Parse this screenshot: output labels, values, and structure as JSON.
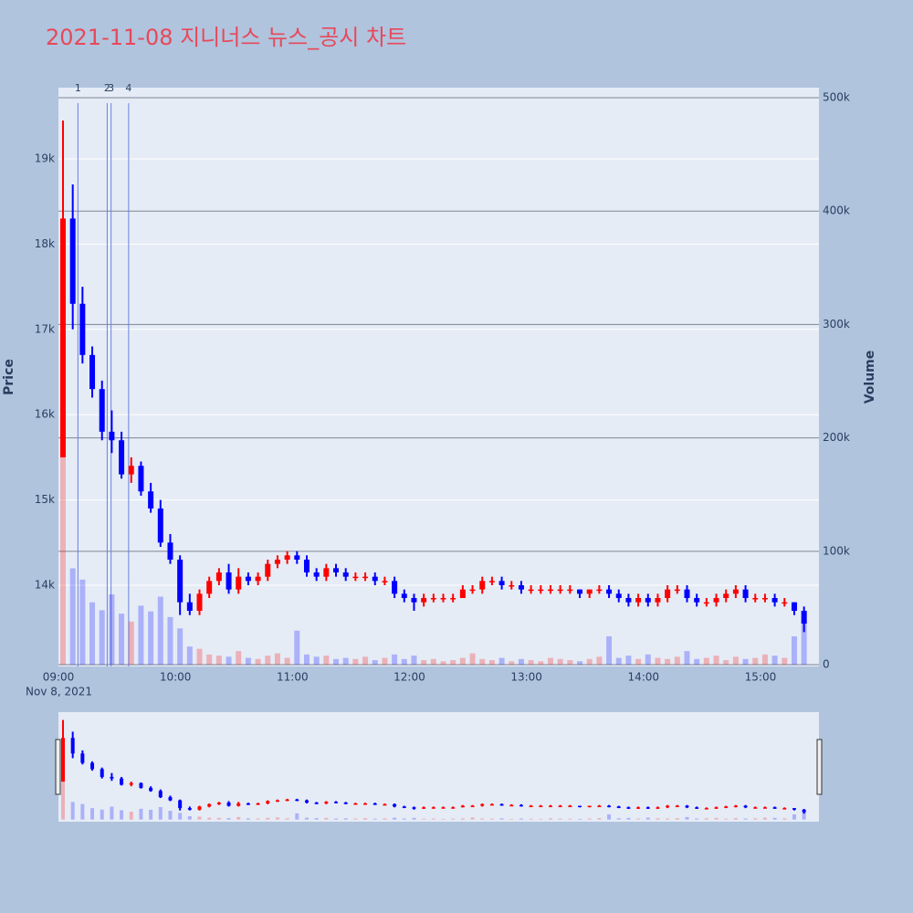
{
  "chart_data": {
    "type": "candlestick",
    "title": "2021-11-08 지니너스 뉴스_공시 차트",
    "y_label": "Price",
    "y2_label": "Volume",
    "x_date_label": "Nov 8, 2021",
    "up_color": "#ff0000",
    "down_color": "#0000ff",
    "xlim": [
      "09:00",
      "15:30"
    ],
    "xticks": [
      "09:00",
      "10:00",
      "11:00",
      "12:00",
      "13:00",
      "14:00",
      "15:00"
    ],
    "ylim": [
      13047,
      19835
    ],
    "yticks": [
      {
        "value": 14000,
        "label": "14k"
      },
      {
        "value": 15000,
        "label": "15k"
      },
      {
        "value": 16000,
        "label": "16k"
      },
      {
        "value": 17000,
        "label": "17k"
      },
      {
        "value": 18000,
        "label": "18k"
      },
      {
        "value": 19000,
        "label": "19k"
      }
    ],
    "y2lim": [
      -1600,
      508900
    ],
    "y2ticks": [
      0,
      {
        "value": 100000,
        "label": "100k"
      },
      {
        "value": 200000,
        "label": "200k"
      },
      {
        "value": 300000,
        "label": "300k"
      },
      {
        "value": 400000,
        "label": "400k"
      },
      {
        "value": 500000,
        "label": "500k"
      }
    ],
    "annotations": [
      {
        "x": "09:10",
        "label": "1"
      },
      {
        "x": "09:25",
        "label": "2"
      },
      {
        "x": "09:27",
        "label": "3"
      },
      {
        "x": "09:36",
        "label": "4"
      }
    ],
    "x": [
      "09:00",
      "09:05",
      "09:10",
      "09:15",
      "09:20",
      "09:25",
      "09:30",
      "09:35",
      "09:40",
      "09:45",
      "09:50",
      "09:55",
      "10:00",
      "10:05",
      "10:10",
      "10:15",
      "10:20",
      "10:25",
      "10:30",
      "10:35",
      "10:40",
      "10:45",
      "10:50",
      "10:55",
      "11:00",
      "11:05",
      "11:10",
      "11:15",
      "11:20",
      "11:25",
      "11:30",
      "11:35",
      "11:40",
      "11:45",
      "11:50",
      "11:55",
      "12:00",
      "12:05",
      "12:10",
      "12:15",
      "12:20",
      "12:25",
      "12:30",
      "12:35",
      "12:40",
      "12:45",
      "12:50",
      "12:55",
      "13:00",
      "13:05",
      "13:10",
      "13:15",
      "13:20",
      "13:25",
      "13:30",
      "13:35",
      "13:40",
      "13:45",
      "13:50",
      "13:55",
      "14:00",
      "14:05",
      "14:10",
      "14:15",
      "14:20",
      "14:25",
      "14:30",
      "14:35",
      "14:40",
      "14:45",
      "14:50",
      "14:55",
      "15:00",
      "15:05",
      "15:10",
      "15:15",
      "15:20"
    ],
    "open": [
      15500,
      18300,
      17300,
      16700,
      16300,
      15800,
      15700,
      15300,
      15400,
      15100,
      14900,
      14500,
      14300,
      13800,
      13700,
      13900,
      14050,
      14150,
      13950,
      14100,
      14050,
      14100,
      14250,
      14300,
      14350,
      14300,
      14150,
      14100,
      14200,
      14150,
      14100,
      14100,
      14100,
      14050,
      14050,
      13900,
      13850,
      13800,
      13850,
      13850,
      13850,
      13850,
      13950,
      13950,
      14050,
      14050,
      14000,
      14000,
      13950,
      13950,
      13950,
      13950,
      13950,
      13950,
      13900,
      13950,
      13950,
      13900,
      13850,
      13800,
      13850,
      13800,
      13850,
      13950,
      13950,
      13850,
      13800,
      13800,
      13850,
      13900,
      13950,
      13850,
      13850,
      13850,
      13800,
      13800,
      13700
    ],
    "high": [
      19450,
      18700,
      17500,
      16800,
      16400,
      16050,
      15800,
      15500,
      15450,
      15200,
      15000,
      14600,
      14350,
      13900,
      13950,
      14100,
      14200,
      14250,
      14200,
      14150,
      14150,
      14300,
      14350,
      14400,
      14400,
      14350,
      14200,
      14250,
      14250,
      14200,
      14150,
      14150,
      14150,
      14100,
      14100,
      13950,
      13900,
      13900,
      13900,
      13900,
      13900,
      14000,
      14000,
      14100,
      14100,
      14100,
      14050,
      14050,
      14000,
      14000,
      14000,
      14000,
      14000,
      13950,
      13950,
      14000,
      14000,
      13950,
      13900,
      13900,
      13900,
      13900,
      14000,
      14000,
      14000,
      13900,
      13850,
      13900,
      13950,
      14000,
      14000,
      13900,
      13900,
      13900,
      13850,
      13800,
      13750
    ],
    "low": [
      15500,
      17000,
      16600,
      16200,
      15700,
      15550,
      15250,
      15200,
      15050,
      14850,
      14450,
      14250,
      13650,
      13650,
      13650,
      13850,
      14000,
      13900,
      13900,
      14000,
      14000,
      14050,
      14200,
      14250,
      14250,
      14100,
      14050,
      14050,
      14100,
      14050,
      14050,
      14050,
      14000,
      14000,
      13850,
      13800,
      13700,
      13750,
      13800,
      13800,
      13800,
      13850,
      13900,
      13900,
      14000,
      13950,
      13950,
      13900,
      13900,
      13900,
      13900,
      13900,
      13900,
      13850,
      13850,
      13900,
      13850,
      13800,
      13750,
      13750,
      13750,
      13750,
      13800,
      13900,
      13800,
      13750,
      13750,
      13750,
      13800,
      13850,
      13800,
      13800,
      13800,
      13750,
      13750,
      13650,
      13450
    ],
    "close": [
      18300,
      17300,
      16700,
      16300,
      15800,
      15700,
      15300,
      15400,
      15100,
      14900,
      14500,
      14300,
      13800,
      13700,
      13900,
      14050,
      14150,
      13950,
      14100,
      14050,
      14100,
      14250,
      14300,
      14350,
      14300,
      14150,
      14100,
      14200,
      14150,
      14100,
      14100,
      14100,
      14050,
      14050,
      13900,
      13850,
      13800,
      13850,
      13850,
      13850,
      13850,
      13950,
      13950,
      14050,
      14050,
      14000,
      14000,
      13950,
      13950,
      13950,
      13950,
      13950,
      13950,
      13900,
      13950,
      13950,
      13900,
      13850,
      13800,
      13850,
      13800,
      13850,
      13950,
      13950,
      13850,
      13800,
      13800,
      13850,
      13900,
      13950,
      13850,
      13850,
      13850,
      13800,
      13800,
      13700,
      13550
    ],
    "volume": [
      185000,
      85000,
      75000,
      55000,
      48000,
      62000,
      45000,
      38000,
      52000,
      47000,
      60000,
      42000,
      32000,
      16000,
      14000,
      9000,
      8000,
      7000,
      12000,
      6000,
      5000,
      8000,
      10000,
      6000,
      30000,
      9000,
      7000,
      8000,
      5000,
      6000,
      5000,
      7000,
      4000,
      6000,
      9000,
      5000,
      8000,
      4000,
      5000,
      3000,
      4000,
      6000,
      10000,
      5000,
      4000,
      6000,
      3000,
      5000,
      4000,
      3000,
      6000,
      5000,
      4000,
      3000,
      5000,
      7000,
      25000,
      6000,
      8000,
      5000,
      9000,
      6000,
      5000,
      7000,
      12000,
      5000,
      6000,
      8000,
      4000,
      7000,
      5000,
      6000,
      9000,
      8000,
      6000,
      25000,
      40000
    ]
  }
}
